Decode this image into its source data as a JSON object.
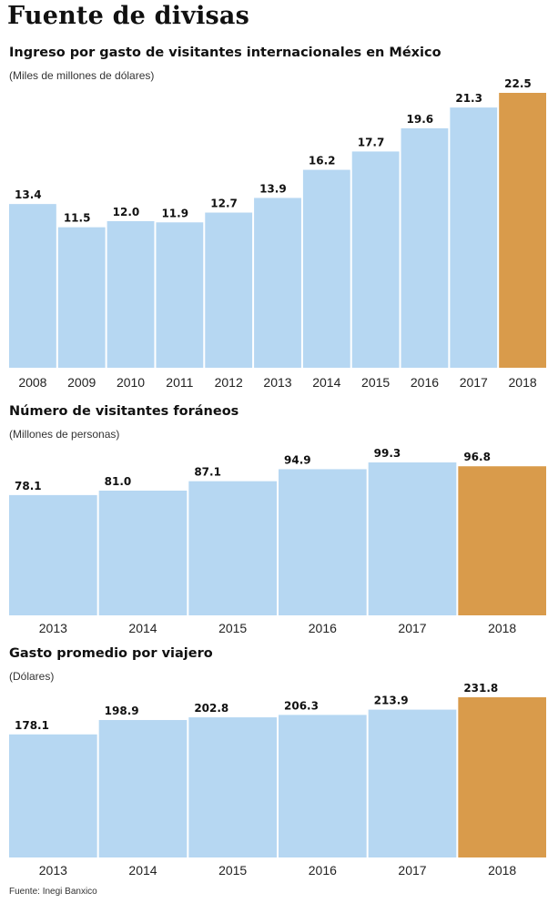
{
  "main_title": "Fuente de divisas",
  "source": "Fuente: Inegi Banxico",
  "colors": {
    "bar": "#b6d7f2",
    "highlight": "#d99b4b"
  },
  "chart_data": [
    {
      "type": "bar",
      "title": "Ingreso por gasto de visitantes internacionales en México",
      "subtitle": "(Miles de millones de dólares)",
      "categories": [
        "2008",
        "2009",
        "2010",
        "2011",
        "2012",
        "2013",
        "2014",
        "2015",
        "2016",
        "2017",
        "2018"
      ],
      "values": [
        13.4,
        11.5,
        12.0,
        11.9,
        12.7,
        13.9,
        16.2,
        17.7,
        19.6,
        21.3,
        22.5
      ],
      "labels": [
        "13.4",
        "11.5",
        "12.0",
        "11.9",
        "12.7",
        "13.9",
        "16.2",
        "17.7",
        "19.6",
        "21.3",
        "22.5"
      ],
      "highlight_index": 10,
      "ylim": [
        0,
        22.5
      ]
    },
    {
      "type": "bar",
      "title": "Número de visitantes foráneos",
      "subtitle": "(Millones de personas)",
      "categories": [
        "2013",
        "2014",
        "2015",
        "2016",
        "2017",
        "2018"
      ],
      "values": [
        78.1,
        81.0,
        87.1,
        94.9,
        99.3,
        96.8
      ],
      "labels": [
        "78.1",
        "81.0",
        "87.1",
        "94.9",
        "99.3",
        "96.8"
      ],
      "highlight_index": 5,
      "ylim": [
        0,
        99.3
      ]
    },
    {
      "type": "bar",
      "title": "Gasto promedio por viajero",
      "subtitle": "(Dólares)",
      "categories": [
        "2013",
        "2014",
        "2015",
        "2016",
        "2017",
        "2018"
      ],
      "values": [
        178.1,
        198.9,
        202.8,
        206.3,
        213.9,
        231.8
      ],
      "labels": [
        "178.1",
        "198.9",
        "202.8",
        "206.3",
        "213.9",
        "231.8"
      ],
      "highlight_index": 5,
      "ylim": [
        0,
        231.8
      ]
    }
  ]
}
